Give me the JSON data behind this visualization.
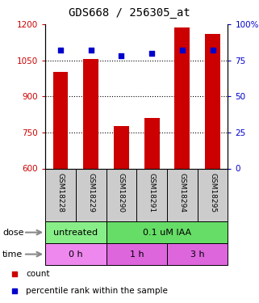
{
  "title": "GDS668 / 256305_at",
  "samples": [
    "GSM18228",
    "GSM18229",
    "GSM18290",
    "GSM18291",
    "GSM18294",
    "GSM18295"
  ],
  "bar_values": [
    1000,
    1055,
    775,
    810,
    1185,
    1160
  ],
  "dot_values": [
    82,
    82,
    78,
    80,
    82,
    82
  ],
  "ylim_left": [
    600,
    1200
  ],
  "ylim_right": [
    0,
    100
  ],
  "yticks_left": [
    600,
    750,
    900,
    1050,
    1200
  ],
  "yticks_right": [
    0,
    25,
    50,
    75,
    100
  ],
  "bar_color": "#cc0000",
  "dot_color": "#0000cc",
  "bar_bottom": 600,
  "dose_labels": [
    {
      "label": "untreated",
      "start": 0,
      "end": 2,
      "color": "#88ee88"
    },
    {
      "label": "0.1 uM IAA",
      "start": 2,
      "end": 6,
      "color": "#66dd66"
    }
  ],
  "time_labels": [
    {
      "label": "0 h",
      "start": 0,
      "end": 2,
      "color": "#ee88ee"
    },
    {
      "label": "1 h",
      "start": 2,
      "end": 4,
      "color": "#dd66dd"
    },
    {
      "label": "3 h",
      "start": 4,
      "end": 6,
      "color": "#dd66dd"
    }
  ],
  "sample_bg_color": "#cccccc",
  "legend_count_color": "#cc0000",
  "legend_pct_color": "#0000cc",
  "grid_color": "#000000",
  "left_tick_color": "#cc0000",
  "right_tick_color": "#0000cc",
  "title_fontsize": 10,
  "axis_fontsize": 7.5,
  "sample_fontsize": 6.5,
  "row_label_fontsize": 8,
  "legend_fontsize": 7.5
}
